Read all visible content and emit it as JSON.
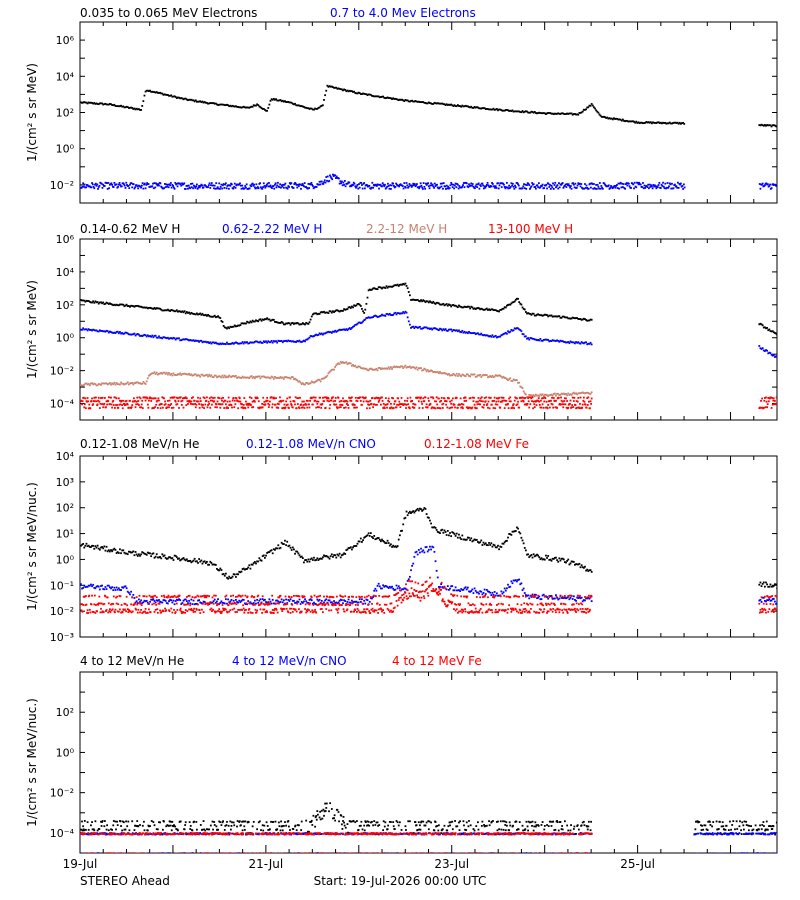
{
  "figure": {
    "footer_left": "STEREO Ahead",
    "footer_center": "Start: 19-Jul-2026 00:00 UTC",
    "x_tick_labels": [
      "19-Jul",
      "21-Jul",
      "23-Jul",
      "25-Jul"
    ]
  },
  "colors": {
    "black": "#000000",
    "blue": "#0000ff",
    "tan": "#c8826e",
    "red": "#ff0000"
  },
  "chart_data": [
    {
      "type": "scatter",
      "panel_id": "electrons",
      "ylabel": "1/(cm² s sr MeV)",
      "log_y": true,
      "ylim_exp": [
        -3,
        7
      ],
      "y_tick_labels": [
        {
          "exp": 6,
          "label": "10⁶"
        },
        {
          "exp": 4,
          "label": "10⁴"
        },
        {
          "exp": 2,
          "label": "10²"
        },
        {
          "exp": 0,
          "label": "10⁰"
        },
        {
          "exp": -2,
          "label": "10⁻²"
        }
      ],
      "xlim_days": [
        0,
        7.5
      ],
      "x_tick_labels": [
        "19-Jul",
        "21-Jul",
        "23-Jul",
        "25-Jul"
      ],
      "legend": [
        {
          "name": "0.035 to 0.065 MeV Electrons",
          "color": "#000000"
        },
        {
          "name": "0.7 to 4.0 Mev Electrons",
          "color": "#0000ff"
        }
      ],
      "series": [
        {
          "name": "0.035 to 0.065 MeV Electrons",
          "color": "#000000",
          "style": "trace",
          "spread": 0.08,
          "points": [
            [
              0,
              2.6
            ],
            [
              0.3,
              2.5
            ],
            [
              0.65,
              2.2
            ],
            [
              0.7,
              3.3
            ],
            [
              1.1,
              2.8
            ],
            [
              1.4,
              2.55
            ],
            [
              1.8,
              2.3
            ],
            [
              1.9,
              2.5
            ],
            [
              2.0,
              2.1
            ],
            [
              2.05,
              2.8
            ],
            [
              2.25,
              2.6
            ],
            [
              2.4,
              2.35
            ],
            [
              2.5,
              2.2
            ],
            [
              2.6,
              2.4
            ],
            [
              2.65,
              3.5
            ],
            [
              3.0,
              3.1
            ],
            [
              3.5,
              2.7
            ],
            [
              4.0,
              2.45
            ],
            [
              4.5,
              2.2
            ],
            [
              5.0,
              2.0
            ],
            [
              5.35,
              1.95
            ],
            [
              5.5,
              2.5
            ],
            [
              5.6,
              1.8
            ],
            [
              6.0,
              1.5
            ],
            [
              6.5,
              1.45
            ]
          ],
          "gaps": [
            [
              6.5,
              7.3
            ]
          ],
          "tail": [
            [
              7.3,
              1.35
            ],
            [
              7.5,
              1.3
            ]
          ]
        },
        {
          "name": "0.7 to 4.0 Mev Electrons",
          "color": "#0000ff",
          "style": "noise",
          "base": -2.0,
          "spread": 0.35,
          "bumps": [
            [
              2.7,
              0.45
            ]
          ],
          "gaps": [
            [
              6.5,
              7.3
            ]
          ]
        }
      ]
    },
    {
      "type": "scatter",
      "panel_id": "protons",
      "ylabel": "1/(cm² s sr MeV)",
      "log_y": true,
      "ylim_exp": [
        -5,
        6
      ],
      "y_tick_labels": [
        {
          "exp": 6,
          "label": "10⁶"
        },
        {
          "exp": 4,
          "label": "10⁴"
        },
        {
          "exp": 2,
          "label": "10²"
        },
        {
          "exp": 0,
          "label": "10⁰"
        },
        {
          "exp": -2,
          "label": "10⁻²"
        },
        {
          "exp": -4,
          "label": "10⁻⁴"
        }
      ],
      "xlim_days": [
        0,
        7.5
      ],
      "legend": [
        {
          "name": "0.14-0.62 MeV H",
          "color": "#000000"
        },
        {
          "name": "0.62-2.22 MeV H",
          "color": "#0000ff"
        },
        {
          "name": "2.2-12 MeV H",
          "color": "#c8826e"
        },
        {
          "name": "13-100 MeV H",
          "color": "#ff0000"
        }
      ],
      "series": [
        {
          "name": "0.14-0.62 MeV H",
          "color": "#000000",
          "style": "trace",
          "spread": 0.12,
          "points": [
            [
              0,
              2.3
            ],
            [
              0.5,
              2.0
            ],
            [
              1.0,
              1.7
            ],
            [
              1.5,
              1.3
            ],
            [
              1.55,
              0.6
            ],
            [
              1.8,
              1.0
            ],
            [
              2.0,
              1.2
            ],
            [
              2.2,
              0.9
            ],
            [
              2.45,
              0.9
            ],
            [
              2.5,
              1.5
            ],
            [
              2.8,
              1.7
            ],
            [
              3.0,
              2.1
            ],
            [
              3.05,
              1.5
            ],
            [
              3.1,
              3.0
            ],
            [
              3.5,
              3.3
            ],
            [
              3.55,
              2.4
            ],
            [
              4.0,
              2.0
            ],
            [
              4.5,
              1.7
            ],
            [
              4.7,
              2.4
            ],
            [
              4.8,
              1.5
            ],
            [
              5.2,
              1.3
            ],
            [
              5.5,
              1.1
            ]
          ],
          "gaps": [
            [
              5.5,
              7.3
            ]
          ],
          "tail": [
            [
              7.3,
              0.9
            ],
            [
              7.5,
              0.2
            ]
          ]
        },
        {
          "name": "0.62-2.22 MeV H",
          "color": "#0000ff",
          "style": "trace",
          "spread": 0.12,
          "points": [
            [
              0,
              0.6
            ],
            [
              0.5,
              0.3
            ],
            [
              1.0,
              0.0
            ],
            [
              1.5,
              -0.3
            ],
            [
              2.0,
              -0.2
            ],
            [
              2.4,
              -0.15
            ],
            [
              2.5,
              0.2
            ],
            [
              2.9,
              0.6
            ],
            [
              3.1,
              1.3
            ],
            [
              3.5,
              1.6
            ],
            [
              3.55,
              0.7
            ],
            [
              4.0,
              0.5
            ],
            [
              4.5,
              0.1
            ],
            [
              4.7,
              0.7
            ],
            [
              4.8,
              0.0
            ],
            [
              5.2,
              -0.2
            ],
            [
              5.5,
              -0.3
            ]
          ],
          "gaps": [
            [
              5.5,
              7.3
            ]
          ],
          "tail": [
            [
              7.3,
              -0.5
            ],
            [
              7.5,
              -1.2
            ]
          ]
        },
        {
          "name": "2.2-12 MeV H",
          "color": "#c8826e",
          "style": "trace",
          "spread": 0.15,
          "points": [
            [
              0,
              -2.8
            ],
            [
              0.7,
              -2.7
            ],
            [
              0.75,
              -2.1
            ],
            [
              1.5,
              -2.3
            ],
            [
              2.3,
              -2.4
            ],
            [
              2.4,
              -2.8
            ],
            [
              2.6,
              -2.5
            ],
            [
              2.8,
              -1.4
            ],
            [
              3.1,
              -1.9
            ],
            [
              3.5,
              -1.7
            ],
            [
              4.0,
              -2.2
            ],
            [
              4.5,
              -2.3
            ],
            [
              4.7,
              -2.6
            ],
            [
              4.8,
              -3.5
            ],
            [
              5.5,
              -3.3
            ]
          ],
          "gaps": [
            [
              5.5,
              7.3
            ]
          ],
          "tail": []
        },
        {
          "name": "13-100 MeV H",
          "color": "#ff0000",
          "style": "band",
          "levels": [
            -3.6,
            -3.8,
            -4.0,
            -4.2
          ],
          "gaps": [
            [
              5.5,
              7.3
            ]
          ],
          "tail_range": [
            7.3,
            7.5
          ]
        }
      ]
    },
    {
      "type": "scatter",
      "panel_id": "heavy-ions-low",
      "ylabel": "1/(cm² s sr MeV/nuc.)",
      "log_y": true,
      "ylim_exp": [
        -3,
        4
      ],
      "y_tick_labels": [
        {
          "exp": 4,
          "label": "10⁴"
        },
        {
          "exp": 3,
          "label": "10³"
        },
        {
          "exp": 2,
          "label": "10²"
        },
        {
          "exp": 1,
          "label": "10¹"
        },
        {
          "exp": 0,
          "label": "10⁰"
        },
        {
          "exp": -1,
          "label": "10⁻¹"
        },
        {
          "exp": -2,
          "label": "10⁻²"
        },
        {
          "exp": -3,
          "label": "10⁻³"
        }
      ],
      "xlim_days": [
        0,
        7.5
      ],
      "legend": [
        {
          "name": "0.12-1.08 MeV/n He",
          "color": "#000000"
        },
        {
          "name": "0.12-1.08 MeV/n CNO",
          "color": "#0000ff"
        },
        {
          "name": "0.12-1.08 MeV Fe",
          "color": "#ff0000"
        }
      ],
      "series": [
        {
          "name": "0.12-1.08 MeV/n He",
          "color": "#000000",
          "style": "trace",
          "spread": 0.18,
          "points": [
            [
              0,
              0.6
            ],
            [
              0.5,
              0.3
            ],
            [
              1.0,
              0.1
            ],
            [
              1.4,
              -0.1
            ],
            [
              1.6,
              -0.7
            ],
            [
              1.8,
              -0.3
            ],
            [
              2.0,
              0.2
            ],
            [
              2.2,
              0.7
            ],
            [
              2.4,
              0.0
            ],
            [
              2.8,
              0.2
            ],
            [
              3.1,
              1.0
            ],
            [
              3.4,
              0.5
            ],
            [
              3.5,
              1.8
            ],
            [
              3.7,
              2.0
            ],
            [
              3.8,
              1.2
            ],
            [
              4.2,
              0.8
            ],
            [
              4.5,
              0.5
            ],
            [
              4.7,
              1.3
            ],
            [
              4.8,
              0.2
            ],
            [
              5.2,
              0.0
            ],
            [
              5.5,
              -0.4
            ]
          ],
          "gaps": [
            [
              5.5,
              7.3
            ]
          ],
          "tail": [
            [
              7.3,
              -0.9
            ],
            [
              7.5,
              -1.0
            ]
          ]
        },
        {
          "name": "0.12-1.08 MeV/n CNO",
          "color": "#0000ff",
          "style": "trace",
          "spread": 0.2,
          "points": [
            [
              0,
              -1.0
            ],
            [
              0.5,
              -1.1
            ],
            [
              0.6,
              -1.6
            ],
            [
              1.0,
              -1.6
            ],
            [
              3.1,
              -1.6
            ],
            [
              3.2,
              -1.0
            ],
            [
              3.5,
              -1.1
            ],
            [
              3.6,
              0.3
            ],
            [
              3.8,
              0.5
            ],
            [
              3.85,
              -1.0
            ],
            [
              4.5,
              -1.3
            ],
            [
              4.7,
              -0.7
            ],
            [
              4.8,
              -1.4
            ],
            [
              5.5,
              -1.5
            ]
          ],
          "gaps": [
            [
              5.5,
              7.3
            ]
          ],
          "tail": [
            [
              7.3,
              -1.5
            ],
            [
              7.5,
              -1.6
            ]
          ]
        },
        {
          "name": "0.12-1.08 MeV Fe",
          "color": "#ff0000",
          "style": "band",
          "levels": [
            -1.4,
            -1.7,
            -1.9,
            -2.0
          ],
          "bumps": [
            [
              3.55,
              0.6
            ],
            [
              3.8,
              0.8
            ]
          ],
          "gaps": [
            [
              5.5,
              7.3
            ]
          ],
          "tail_range": [
            7.3,
            7.5
          ]
        }
      ]
    },
    {
      "type": "scatter",
      "panel_id": "heavy-ions-high",
      "ylabel": "1/(cm² s sr MeV/nuc.)",
      "log_y": true,
      "ylim_exp": [
        -5,
        4
      ],
      "y_tick_labels": [
        {
          "exp": 2,
          "label": "10²"
        },
        {
          "exp": 0,
          "label": "10⁰"
        },
        {
          "exp": -2,
          "label": "10⁻²"
        },
        {
          "exp": -4,
          "label": "10⁻⁴"
        }
      ],
      "xlim_days": [
        0,
        7.5
      ],
      "legend": [
        {
          "name": "4 to 12 MeV/n He",
          "color": "#000000"
        },
        {
          "name": "4 to 12 MeV/n CNO",
          "color": "#0000ff"
        },
        {
          "name": "4 to 12 MeV Fe",
          "color": "#ff0000"
        }
      ],
      "series": [
        {
          "name": "4 to 12 MeV/n He",
          "color": "#000000",
          "style": "sparse",
          "base": -3.7,
          "levels": [
            -3.6,
            -3.8,
            -4.0,
            -3.4
          ],
          "bumps": [
            [
              2.6,
              0.5
            ],
            [
              2.7,
              0.6
            ]
          ],
          "gaps": [
            [
              5.5,
              6.6
            ]
          ],
          "tail_range": [
            6.6,
            7.5
          ]
        },
        {
          "name": "4 to 12 MeV/n CNO",
          "color": "#0000ff",
          "style": "band",
          "levels": [
            -4.0,
            -5.0
          ],
          "gaps": [
            [
              5.5,
              6.6
            ]
          ],
          "tail_range": [
            6.6,
            7.5
          ]
        },
        {
          "name": "4 to 12 MeV Fe",
          "color": "#ff0000",
          "style": "band",
          "levels": [
            -4.0,
            -5.0
          ],
          "gaps": [
            [
              5.5,
              7.5
            ]
          ]
        }
      ]
    }
  ]
}
